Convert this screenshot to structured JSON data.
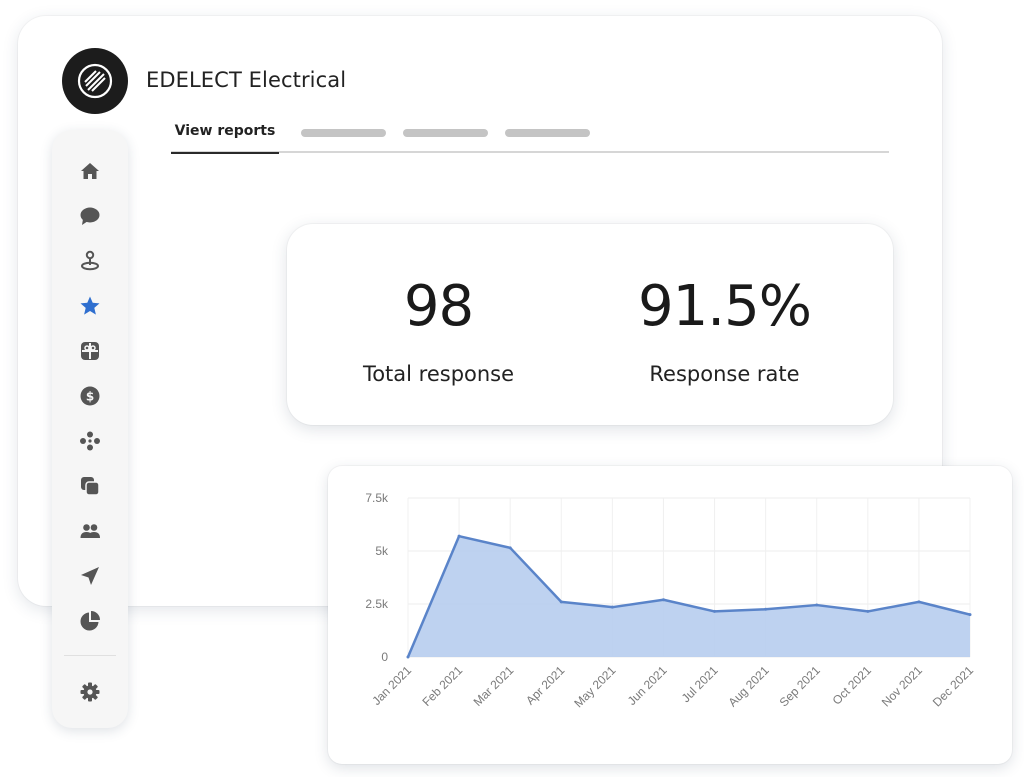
{
  "brand": {
    "name": "EDELECT Electrical",
    "logo_icon": "slashed-circle-icon"
  },
  "tabs": [
    {
      "label": "View reports",
      "active": true
    },
    {
      "label": "",
      "placeholder": true
    },
    {
      "label": "",
      "placeholder": true
    },
    {
      "label": "",
      "placeholder": true
    }
  ],
  "sidebar": {
    "items": [
      {
        "icon": "home-icon",
        "active": false
      },
      {
        "icon": "chat-bubble-icon",
        "active": false
      },
      {
        "icon": "location-pin-icon",
        "active": false
      },
      {
        "icon": "star-icon",
        "active": true
      },
      {
        "icon": "gift-icon",
        "active": false
      },
      {
        "icon": "dollar-icon",
        "active": false
      },
      {
        "icon": "integrations-icon",
        "active": false
      },
      {
        "icon": "layers-icon",
        "active": false
      },
      {
        "icon": "users-icon",
        "active": false
      },
      {
        "icon": "send-icon",
        "active": false
      },
      {
        "icon": "pie-chart-icon",
        "active": false
      }
    ],
    "footer": {
      "icon": "gear-icon"
    }
  },
  "stats": {
    "total_response": {
      "value": "98",
      "label": "Total response"
    },
    "response_rate": {
      "value": "91.5%",
      "label": "Response rate"
    }
  },
  "colors": {
    "accent_star": "#2f6fcf",
    "chart_line": "#5a84c9",
    "chart_fill": "#b7cdee",
    "icon": "#555555"
  },
  "chart_data": {
    "type": "area",
    "x": [
      "Jan 2021",
      "Feb 2021",
      "Mar 2021",
      "Apr 2021",
      "May 2021",
      "Jun 2021",
      "Jul 2021",
      "Aug 2021",
      "Sep 2021",
      "Oct 2021",
      "Nov 2021",
      "Dec 2021"
    ],
    "values": [
      0,
      5700,
      5150,
      2600,
      2350,
      2700,
      2150,
      2250,
      2450,
      2150,
      2600,
      2000
    ],
    "y_ticks": [
      "0",
      "2.5k",
      "5k",
      "7.5k"
    ],
    "ylim": [
      0,
      7500
    ],
    "grid": true
  }
}
